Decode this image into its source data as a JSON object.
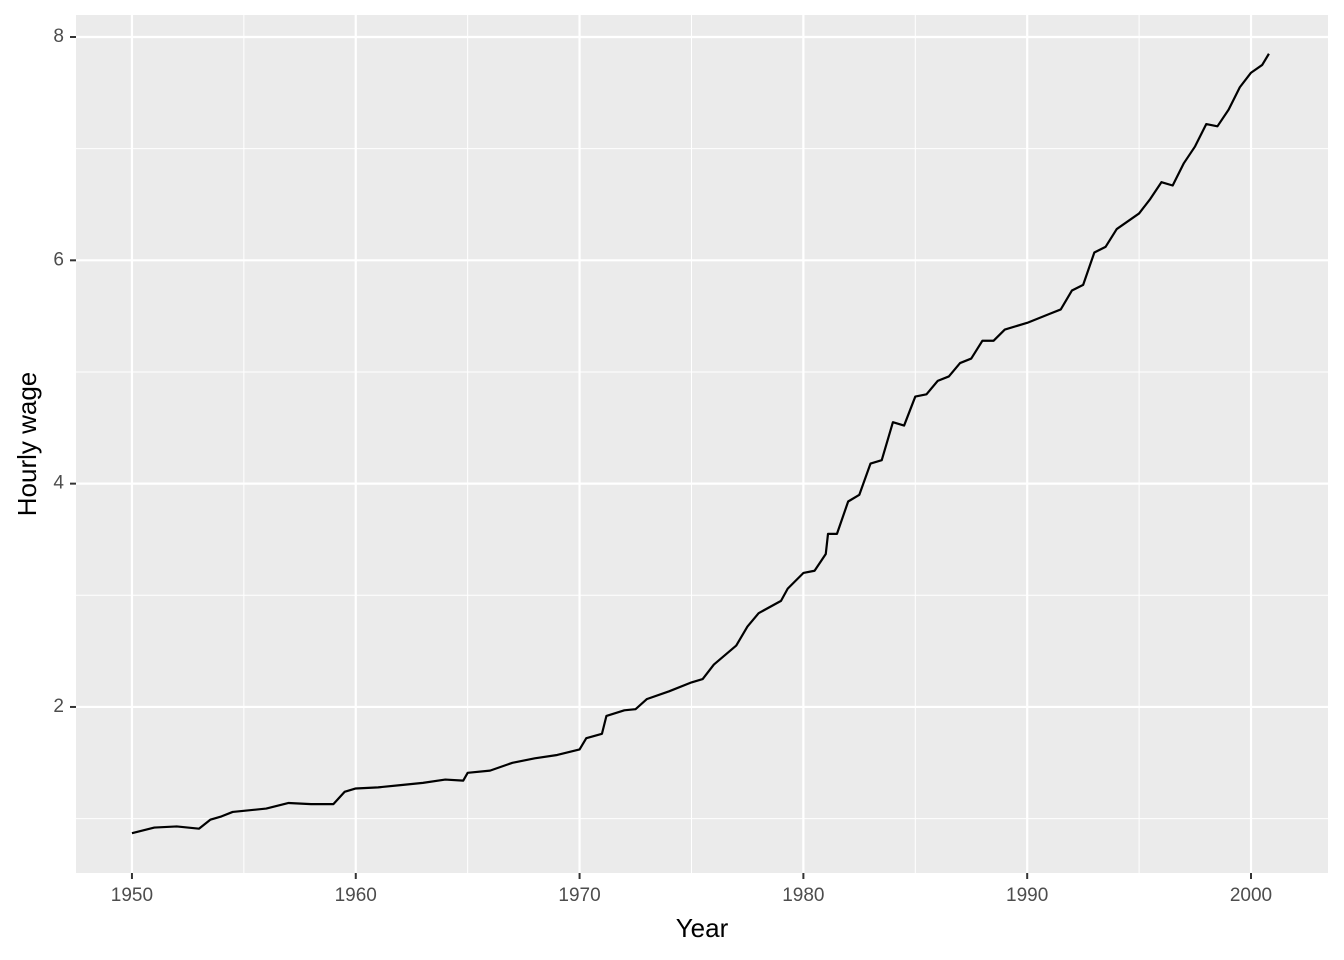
{
  "chart_data": {
    "type": "line",
    "x_label": "Year",
    "y_label": "Hourly wage",
    "x": [
      1950,
      1951,
      1952,
      1953,
      1953.5,
      1954,
      1954.5,
      1955,
      1956,
      1957,
      1958,
      1959,
      1959.5,
      1960,
      1961,
      1962,
      1963,
      1964,
      1964.8,
      1965,
      1966,
      1967,
      1968,
      1969,
      1970,
      1970.3,
      1971,
      1971.2,
      1972,
      1972.5,
      1973,
      1974,
      1975,
      1975.5,
      1976,
      1977,
      1977.5,
      1978,
      1979,
      1979.3,
      1980,
      1980.5,
      1981,
      1981.1,
      1981.5,
      1982,
      1982.5,
      1983,
      1983.5,
      1984,
      1984.5,
      1985,
      1985.5,
      1986,
      1986.5,
      1987,
      1987.5,
      1988,
      1988.5,
      1989,
      1990,
      1991,
      1991.5,
      1992,
      1992.5,
      1993,
      1993.5,
      1994,
      1995,
      1995.5,
      1996,
      1996.5,
      1997,
      1997.5,
      1998,
      1998.5,
      1999,
      1999.5,
      2000,
      2000.5,
      2000.8
    ],
    "series": [
      {
        "color": "#000000",
        "values": [
          0.87,
          0.92,
          0.93,
          0.91,
          0.99,
          1.02,
          1.06,
          1.07,
          1.09,
          1.14,
          1.13,
          1.13,
          1.24,
          1.27,
          1.28,
          1.3,
          1.32,
          1.35,
          1.34,
          1.41,
          1.43,
          1.5,
          1.54,
          1.57,
          1.62,
          1.72,
          1.76,
          1.92,
          1.97,
          1.98,
          2.07,
          2.14,
          2.22,
          2.25,
          2.38,
          2.55,
          2.72,
          2.84,
          2.95,
          3.06,
          3.2,
          3.22,
          3.37,
          3.55,
          3.55,
          3.84,
          3.9,
          4.18,
          4.21,
          4.55,
          4.52,
          4.78,
          4.8,
          4.92,
          4.96,
          5.08,
          5.12,
          5.28,
          5.28,
          5.38,
          5.44,
          5.52,
          5.56,
          5.73,
          5.78,
          6.07,
          6.12,
          6.28,
          6.42,
          6.55,
          6.7,
          6.67,
          6.87,
          7.02,
          7.22,
          7.2,
          7.35,
          7.55,
          7.68,
          7.75,
          7.85
        ]
      }
    ],
    "xlim": [
      1947.5,
      2003.44
    ],
    "ylim": [
      0.513,
      8.197
    ],
    "xticks": [
      1950,
      1960,
      1970,
      1980,
      1990,
      2000
    ],
    "yticks": [
      2,
      4,
      6,
      8
    ],
    "x_minor_grid": [
      1955,
      1965,
      1975,
      1985,
      1995
    ],
    "y_minor_grid": [
      1,
      3,
      5,
      7
    ],
    "grid": true
  }
}
